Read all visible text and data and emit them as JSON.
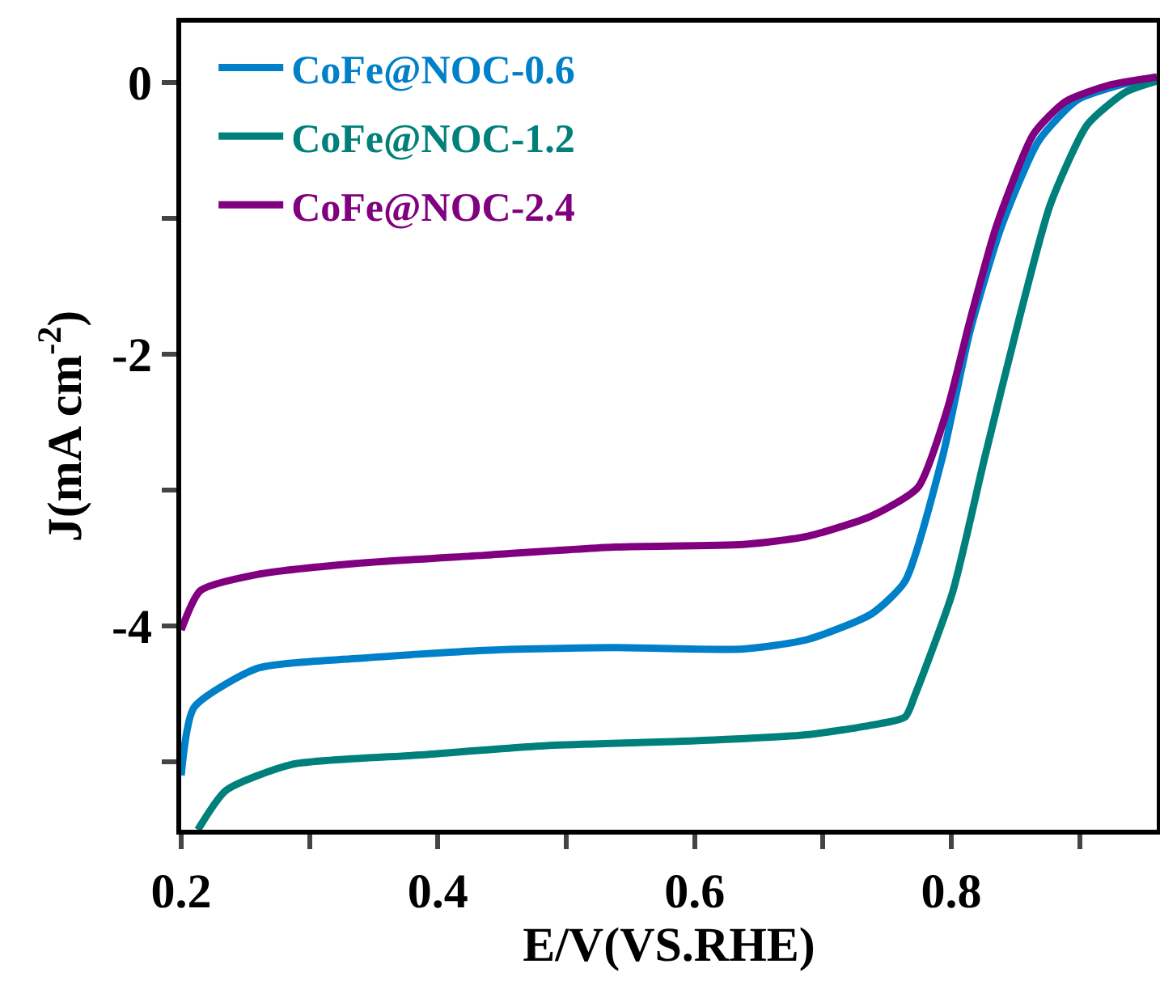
{
  "chart_data": {
    "type": "line",
    "xlabel": "E/V(VS.RHE)",
    "ylabel": "J(mA cm$^{-2}$)",
    "xlim": [
      0.2,
      0.96
    ],
    "ylim": [
      -5.5,
      0.44
    ],
    "xticks": [
      0.2,
      {
        "value": 0.3,
        "label": null
      },
      0.4,
      {
        "value": 0.5,
        "label": null
      },
      0.6,
      {
        "value": 0.7,
        "label": null
      },
      0.8,
      {
        "value": 0.9,
        "label": null
      }
    ],
    "yticks": [
      {
        "value": -5,
        "label": null
      },
      -4,
      {
        "value": -3,
        "label": null
      },
      -2,
      {
        "value": -1,
        "label": null
      },
      0
    ],
    "grid": false,
    "legend": "top left",
    "marker": "none",
    "line_style": "solid",
    "series": [
      {
        "name": "CoFe@NOC-0.6",
        "color": "#0080c8",
        "x": [
          0.2,
          0.21,
          0.26,
          0.336,
          0.436,
          0.537,
          0.638,
          0.688,
          0.738,
          0.764,
          0.793,
          0.814,
          0.839,
          0.868,
          0.898,
          0.931,
          0.96
        ],
        "values": [
          -5.1,
          -4.6,
          -4.31,
          -4.24,
          -4.18,
          -4.16,
          -4.17,
          -4.1,
          -3.91,
          -3.67,
          -2.76,
          -1.85,
          -1.06,
          -0.43,
          -0.13,
          -0.02,
          0.04
        ]
      },
      {
        "name": "CoFe@NOC-1.2",
        "color": "#00807a",
        "x": [
          0.213,
          0.235,
          0.286,
          0.386,
          0.487,
          0.587,
          0.688,
          0.738,
          0.764,
          0.772,
          0.801,
          0.826,
          0.852,
          0.877,
          0.906,
          0.936,
          0.96
        ],
        "values": [
          -5.5,
          -5.21,
          -5.02,
          -4.95,
          -4.88,
          -4.85,
          -4.8,
          -4.73,
          -4.67,
          -4.5,
          -3.75,
          -2.76,
          -1.77,
          -0.9,
          -0.31,
          -0.07,
          0.01
        ]
      },
      {
        "name": "CoFe@NOC-2.4",
        "color": "#800080",
        "x": [
          0.2,
          0.215,
          0.26,
          0.336,
          0.436,
          0.537,
          0.638,
          0.688,
          0.738,
          0.774,
          0.797,
          0.814,
          0.835,
          0.864,
          0.889,
          0.923,
          0.96
        ],
        "values": [
          -4.03,
          -3.74,
          -3.62,
          -3.54,
          -3.48,
          -3.42,
          -3.4,
          -3.34,
          -3.19,
          -2.98,
          -2.4,
          -1.77,
          -1.06,
          -0.38,
          -0.14,
          -0.02,
          0.04
        ]
      }
    ]
  }
}
